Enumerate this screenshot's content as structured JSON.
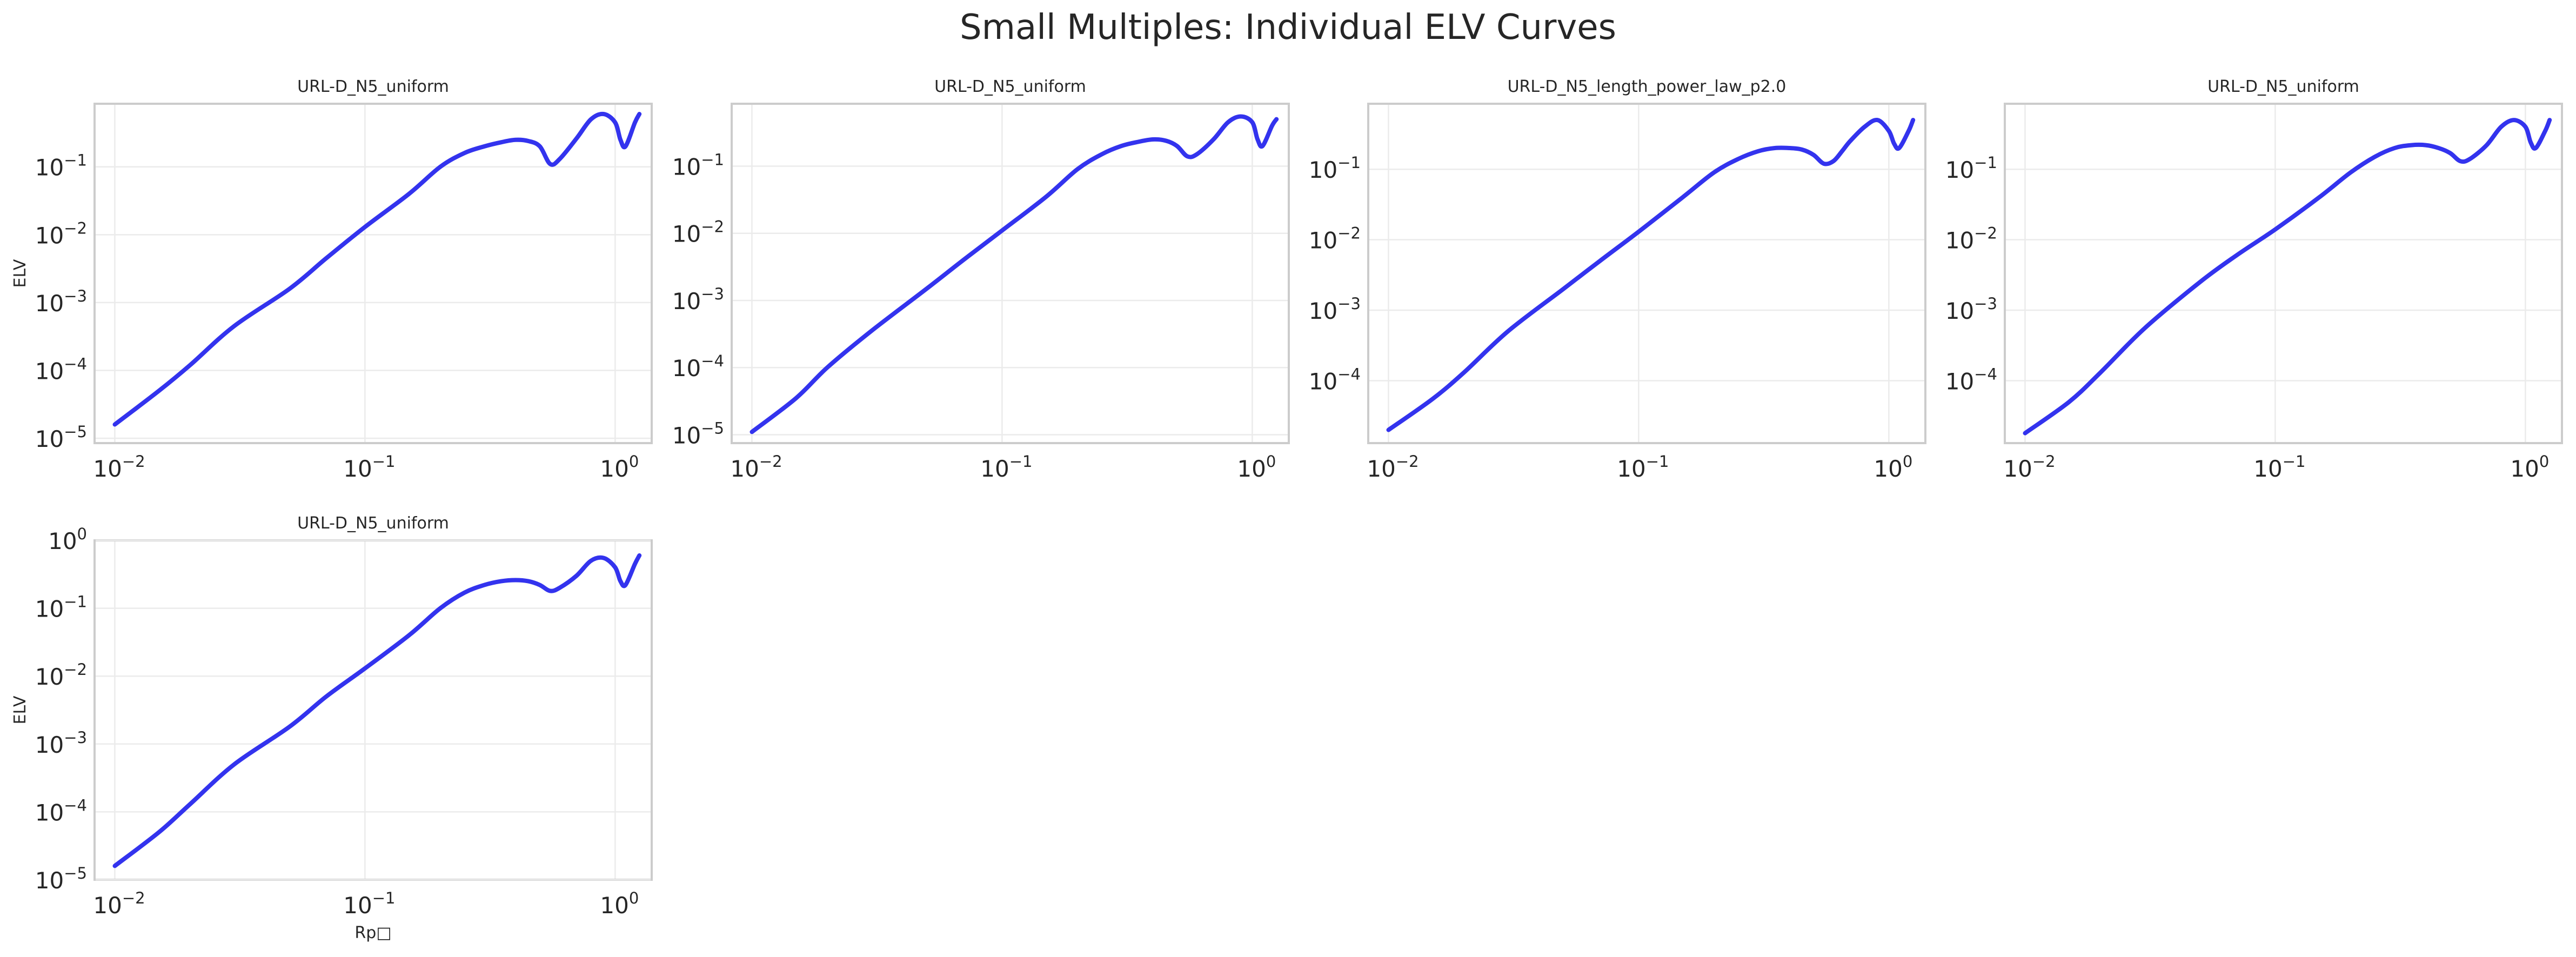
{
  "figure": {
    "title": "Small Multiples: Individual ELV Curves"
  },
  "chart_data": [
    {
      "type": "line",
      "title": "URL-D_N5_uniform",
      "xlabel": "",
      "ylabel": "ELV",
      "xscale": "log",
      "yscale": "log",
      "xlim": [
        0.0083,
        1.4
      ],
      "ylim": [
        8.5e-06,
        0.85
      ],
      "grid": true,
      "color": "#3333ee",
      "xticks": [
        0.01,
        0.1,
        1
      ],
      "xtick_labels": [
        {
          "base": "10",
          "exp": "−2"
        },
        {
          "base": "10",
          "exp": "−1"
        },
        {
          "base": "10",
          "exp": "0"
        }
      ],
      "yticks": [
        1e-05,
        0.0001,
        0.001,
        0.01,
        0.1
      ],
      "ytick_labels": [
        {
          "base": "10",
          "exp": "−5"
        },
        {
          "base": "10",
          "exp": "−4"
        },
        {
          "base": "10",
          "exp": "−3"
        },
        {
          "base": "10",
          "exp": "−2"
        },
        {
          "base": "10",
          "exp": "−1"
        }
      ],
      "series": [
        {
          "x": [
            0.01,
            0.015,
            0.02,
            0.03,
            0.05,
            0.07,
            0.1,
            0.15,
            0.2,
            0.25,
            0.3,
            0.35,
            0.4,
            0.45,
            0.5,
            0.55,
            0.6,
            0.7,
            0.8,
            0.9,
            1.0,
            1.05,
            1.1,
            1.2,
            1.25
          ],
          "y": [
            1.6e-05,
            5e-05,
            0.00012,
            0.00045,
            0.0016,
            0.0045,
            0.013,
            0.04,
            0.1,
            0.16,
            0.2,
            0.23,
            0.25,
            0.24,
            0.2,
            0.11,
            0.13,
            0.26,
            0.5,
            0.6,
            0.45,
            0.25,
            0.2,
            0.45,
            0.6
          ]
        }
      ]
    },
    {
      "type": "line",
      "title": "URL-D_N5_uniform",
      "xlabel": "",
      "ylabel": "",
      "xscale": "log",
      "yscale": "log",
      "xlim": [
        0.0083,
        1.4
      ],
      "ylim": [
        7.5e-06,
        0.85
      ],
      "grid": true,
      "color": "#3333ee",
      "xticks": [
        0.01,
        0.1,
        1
      ],
      "xtick_labels": [
        {
          "base": "10",
          "exp": "−2"
        },
        {
          "base": "10",
          "exp": "−1"
        },
        {
          "base": "10",
          "exp": "0"
        }
      ],
      "yticks": [
        1e-05,
        0.0001,
        0.001,
        0.01,
        0.1
      ],
      "ytick_labels": [
        {
          "base": "10",
          "exp": "−5"
        },
        {
          "base": "10",
          "exp": "−4"
        },
        {
          "base": "10",
          "exp": "−3"
        },
        {
          "base": "10",
          "exp": "−2"
        },
        {
          "base": "10",
          "exp": "−1"
        }
      ],
      "series": [
        {
          "x": [
            0.01,
            0.015,
            0.02,
            0.03,
            0.05,
            0.07,
            0.1,
            0.15,
            0.2,
            0.25,
            0.3,
            0.35,
            0.4,
            0.45,
            0.5,
            0.55,
            0.6,
            0.7,
            0.8,
            0.9,
            1.0,
            1.05,
            1.1,
            1.2,
            1.25
          ],
          "y": [
            1.1e-05,
            3.5e-05,
            0.0001,
            0.00035,
            0.0015,
            0.004,
            0.011,
            0.035,
            0.09,
            0.15,
            0.2,
            0.23,
            0.25,
            0.24,
            0.2,
            0.14,
            0.15,
            0.25,
            0.45,
            0.55,
            0.45,
            0.25,
            0.2,
            0.4,
            0.5
          ]
        }
      ]
    },
    {
      "type": "line",
      "title": "URL-D_N5_length_power_law_p2.0",
      "xlabel": "",
      "ylabel": "",
      "xscale": "log",
      "yscale": "log",
      "xlim": [
        0.0083,
        1.4
      ],
      "ylim": [
        1.3e-05,
        0.85
      ],
      "grid": true,
      "color": "#3333ee",
      "xticks": [
        0.01,
        0.1,
        1
      ],
      "xtick_labels": [
        {
          "base": "10",
          "exp": "−2"
        },
        {
          "base": "10",
          "exp": "−1"
        },
        {
          "base": "10",
          "exp": "0"
        }
      ],
      "yticks": [
        0.0001,
        0.001,
        0.01,
        0.1
      ],
      "ytick_labels": [
        {
          "base": "10",
          "exp": "−4"
        },
        {
          "base": "10",
          "exp": "−3"
        },
        {
          "base": "10",
          "exp": "−2"
        },
        {
          "base": "10",
          "exp": "−1"
        }
      ],
      "series": [
        {
          "x": [
            0.01,
            0.015,
            0.02,
            0.03,
            0.05,
            0.07,
            0.1,
            0.15,
            0.2,
            0.25,
            0.3,
            0.35,
            0.4,
            0.45,
            0.5,
            0.55,
            0.6,
            0.65,
            0.7,
            0.8,
            0.9,
            1.0,
            1.05,
            1.1,
            1.2,
            1.25
          ],
          "y": [
            2e-05,
            5.5e-05,
            0.00013,
            0.0005,
            0.002,
            0.005,
            0.013,
            0.04,
            0.09,
            0.14,
            0.18,
            0.2,
            0.2,
            0.19,
            0.16,
            0.12,
            0.13,
            0.18,
            0.25,
            0.4,
            0.5,
            0.35,
            0.23,
            0.2,
            0.35,
            0.5
          ]
        }
      ]
    },
    {
      "type": "line",
      "title": "URL-D_N5_uniform",
      "xlabel": "",
      "ylabel": "",
      "xscale": "log",
      "yscale": "log",
      "xlim": [
        0.0083,
        1.4
      ],
      "ylim": [
        1.3e-05,
        0.85
      ],
      "grid": true,
      "color": "#3333ee",
      "xticks": [
        0.01,
        0.1,
        1
      ],
      "xtick_labels": [
        {
          "base": "10",
          "exp": "−2"
        },
        {
          "base": "10",
          "exp": "−1"
        },
        {
          "base": "10",
          "exp": "0"
        }
      ],
      "yticks": [
        0.0001,
        0.001,
        0.01,
        0.1
      ],
      "ytick_labels": [
        {
          "base": "10",
          "exp": "−4"
        },
        {
          "base": "10",
          "exp": "−3"
        },
        {
          "base": "10",
          "exp": "−2"
        },
        {
          "base": "10",
          "exp": "−1"
        }
      ],
      "series": [
        {
          "x": [
            0.01,
            0.015,
            0.02,
            0.03,
            0.05,
            0.07,
            0.1,
            0.15,
            0.2,
            0.25,
            0.3,
            0.35,
            0.4,
            0.45,
            0.5,
            0.55,
            0.6,
            0.7,
            0.8,
            0.9,
            1.0,
            1.05,
            1.1,
            1.2,
            1.25
          ],
          "y": [
            1.8e-05,
            5e-05,
            0.00013,
            0.00055,
            0.0025,
            0.006,
            0.014,
            0.04,
            0.09,
            0.15,
            0.2,
            0.22,
            0.22,
            0.2,
            0.17,
            0.13,
            0.14,
            0.22,
            0.4,
            0.5,
            0.4,
            0.24,
            0.2,
            0.35,
            0.5
          ]
        }
      ]
    },
    {
      "type": "line",
      "title": "URL-D_N5_uniform",
      "xlabel": "Rp□",
      "ylabel": "ELV",
      "xscale": "log",
      "yscale": "log",
      "xlim": [
        0.0083,
        1.4
      ],
      "ylim": [
        1e-05,
        1
      ],
      "grid": true,
      "color": "#3333ee",
      "xticks": [
        0.01,
        0.1,
        1
      ],
      "xtick_labels": [
        {
          "base": "10",
          "exp": "−2"
        },
        {
          "base": "10",
          "exp": "−1"
        },
        {
          "base": "10",
          "exp": "0"
        }
      ],
      "yticks": [
        1e-05,
        0.0001,
        0.001,
        0.01,
        0.1,
        1
      ],
      "ytick_labels": [
        {
          "base": "10",
          "exp": "−5"
        },
        {
          "base": "10",
          "exp": "−4"
        },
        {
          "base": "10",
          "exp": "−3"
        },
        {
          "base": "10",
          "exp": "−2"
        },
        {
          "base": "10",
          "exp": "−1"
        },
        {
          "base": "10",
          "exp": "0"
        }
      ],
      "series": [
        {
          "x": [
            0.01,
            0.015,
            0.02,
            0.03,
            0.05,
            0.07,
            0.1,
            0.15,
            0.2,
            0.25,
            0.3,
            0.35,
            0.4,
            0.45,
            0.5,
            0.55,
            0.6,
            0.7,
            0.8,
            0.9,
            1.0,
            1.05,
            1.1,
            1.2,
            1.25
          ],
          "y": [
            1.6e-05,
            5e-05,
            0.00013,
            0.0005,
            0.0018,
            0.005,
            0.013,
            0.04,
            0.1,
            0.17,
            0.22,
            0.25,
            0.26,
            0.25,
            0.22,
            0.18,
            0.2,
            0.3,
            0.5,
            0.55,
            0.4,
            0.25,
            0.22,
            0.45,
            0.6
          ]
        }
      ]
    }
  ]
}
